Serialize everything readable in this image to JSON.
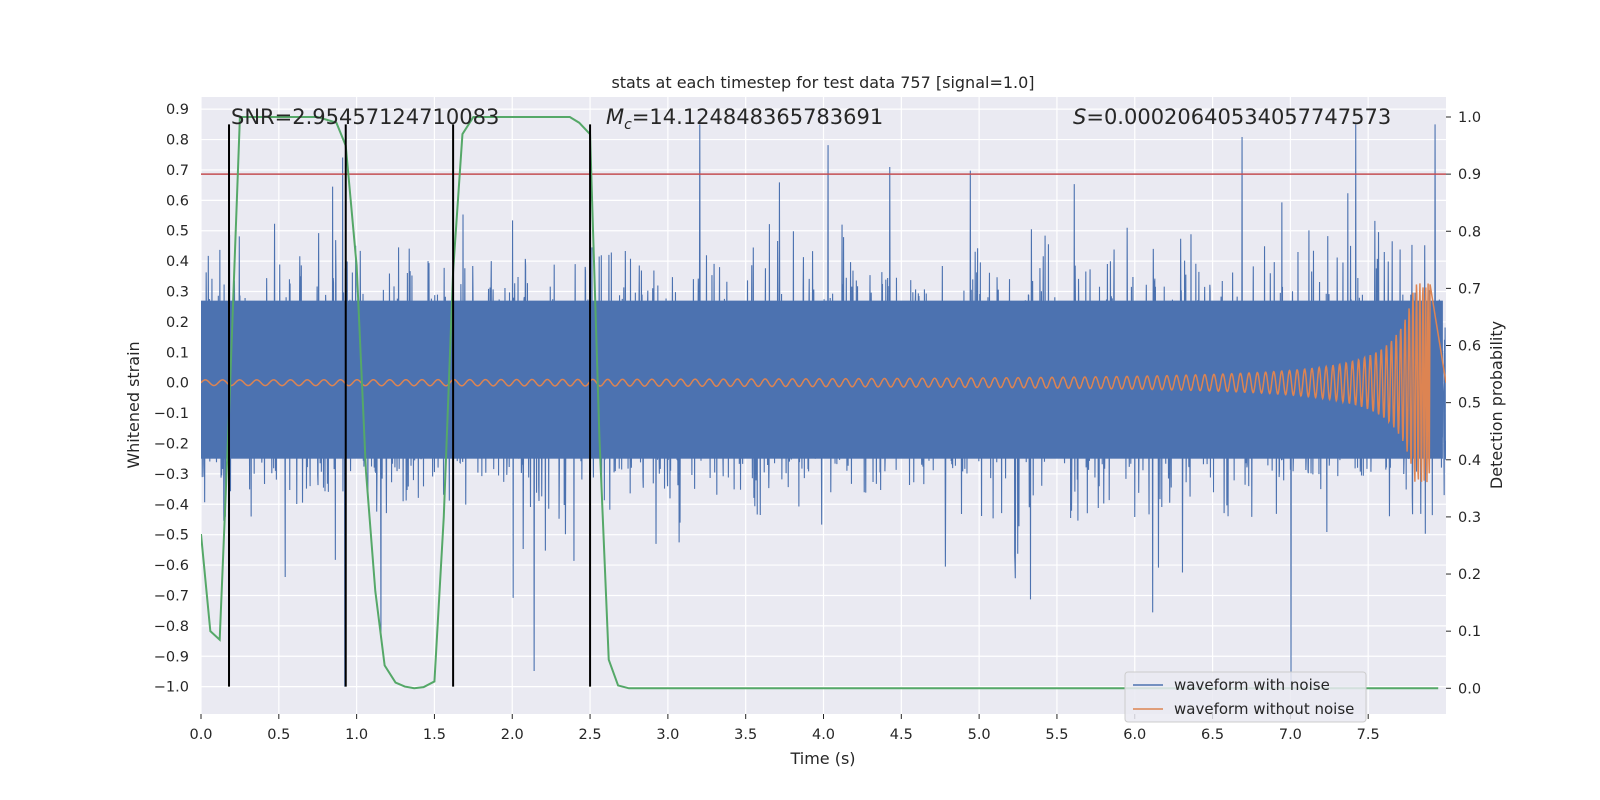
{
  "chart_data": {
    "type": "line",
    "title": "stats at each timestep for test data 757 [signal=1.0]",
    "xlabel": "Time (s)",
    "ylabel": "Whitened strain",
    "y2label": "Detection probability",
    "xlim": [
      0.0,
      8.0
    ],
    "ylim": [
      -1.09,
      0.94
    ],
    "y2lim": [
      -0.045,
      1.035
    ],
    "xticks": [
      0.0,
      0.5,
      1.0,
      1.5,
      2.0,
      2.5,
      3.0,
      3.5,
      4.0,
      4.5,
      5.0,
      5.5,
      6.0,
      6.5,
      7.0,
      7.5
    ],
    "xtick_labels": [
      "0.0",
      "0.5",
      "1.0",
      "1.5",
      "2.0",
      "2.5",
      "3.0",
      "3.5",
      "4.0",
      "4.5",
      "5.0",
      "5.5",
      "6.0",
      "6.5",
      "7.0",
      "7.5"
    ],
    "yticks": [
      0.9,
      0.8,
      0.7,
      0.6,
      0.5,
      0.4,
      0.3,
      0.2,
      0.1,
      0.0,
      -0.1,
      -0.2,
      -0.3,
      -0.4,
      -0.5,
      -0.6,
      -0.7,
      -0.8,
      -0.9,
      -1.0
    ],
    "ytick_labels": [
      "0.9",
      "0.8",
      "0.7",
      "0.6",
      "0.5",
      "0.4",
      "0.3",
      "0.2",
      "0.1",
      "0.0",
      "−0.1",
      "−0.2",
      "−0.3",
      "−0.4",
      "−0.5",
      "−0.6",
      "−0.7",
      "−0.8",
      "−0.9",
      "−1.0"
    ],
    "y2ticks": [
      1.0,
      0.9,
      0.8,
      0.7,
      0.6,
      0.5,
      0.4,
      0.3,
      0.2,
      0.1,
      0.0
    ],
    "y2tick_labels": [
      "1.0",
      "0.9",
      "0.8",
      "0.7",
      "0.6",
      "0.5",
      "0.4",
      "0.3",
      "0.2",
      "0.1",
      "0.0"
    ],
    "annotations": {
      "snr": "SNR=2.95457124710083",
      "mc_symbol": "M",
      "mc_sub": "c",
      "mc_value": "=14.124848365783691",
      "s_symbol": "S",
      "s_value": "=0.00020640534057747573"
    },
    "threshold": {
      "value_y2": 0.9,
      "color": "#c44e52"
    },
    "vertical_markers": [
      0.18,
      0.93,
      1.62,
      2.5
    ],
    "marker_range_y": [
      -1.0,
      0.85
    ],
    "detection_probability": {
      "name": "detection probability",
      "color": "#55a868",
      "x": [
        0.0,
        0.06,
        0.12,
        0.18,
        0.25,
        0.31,
        0.37,
        0.5,
        0.62,
        0.75,
        0.87,
        0.93,
        1.0,
        1.06,
        1.12,
        1.18,
        1.25,
        1.31,
        1.37,
        1.43,
        1.5,
        1.56,
        1.62,
        1.68,
        1.75,
        1.87,
        2.0,
        2.12,
        2.25,
        2.37,
        2.43,
        2.5,
        2.56,
        2.62,
        2.68,
        2.75,
        3.0,
        4.0,
        5.0,
        6.0,
        7.0,
        7.95
      ],
      "y": [
        0.27,
        0.1,
        0.085,
        0.48,
        1.0,
        1.0,
        1.0,
        1.0,
        1.0,
        1.0,
        0.99,
        0.95,
        0.74,
        0.38,
        0.17,
        0.04,
        0.01,
        0.003,
        0.0,
        0.002,
        0.012,
        0.3,
        0.73,
        0.97,
        1.0,
        1.0,
        1.0,
        1.0,
        1.0,
        1.0,
        0.99,
        0.97,
        0.44,
        0.05,
        0.005,
        0.0,
        0.0,
        0.0,
        0.0,
        0.0,
        0.0,
        0.0
      ]
    },
    "noisy_waveform": {
      "name": "waveform with noise",
      "color": "#4c72b0",
      "samples": 4096,
      "core_band": [
        -0.25,
        0.27
      ],
      "approx_max": 0.85,
      "approx_min": -1.0
    },
    "clean_waveform": {
      "name": "waveform without noise",
      "color": "#dd8452",
      "x_end": 7.9,
      "amplitude_start": 0.006,
      "amplitude_end": 0.33
    },
    "legend": {
      "position": "lower right",
      "entries": [
        "waveform with noise",
        "waveform without noise"
      ]
    }
  }
}
